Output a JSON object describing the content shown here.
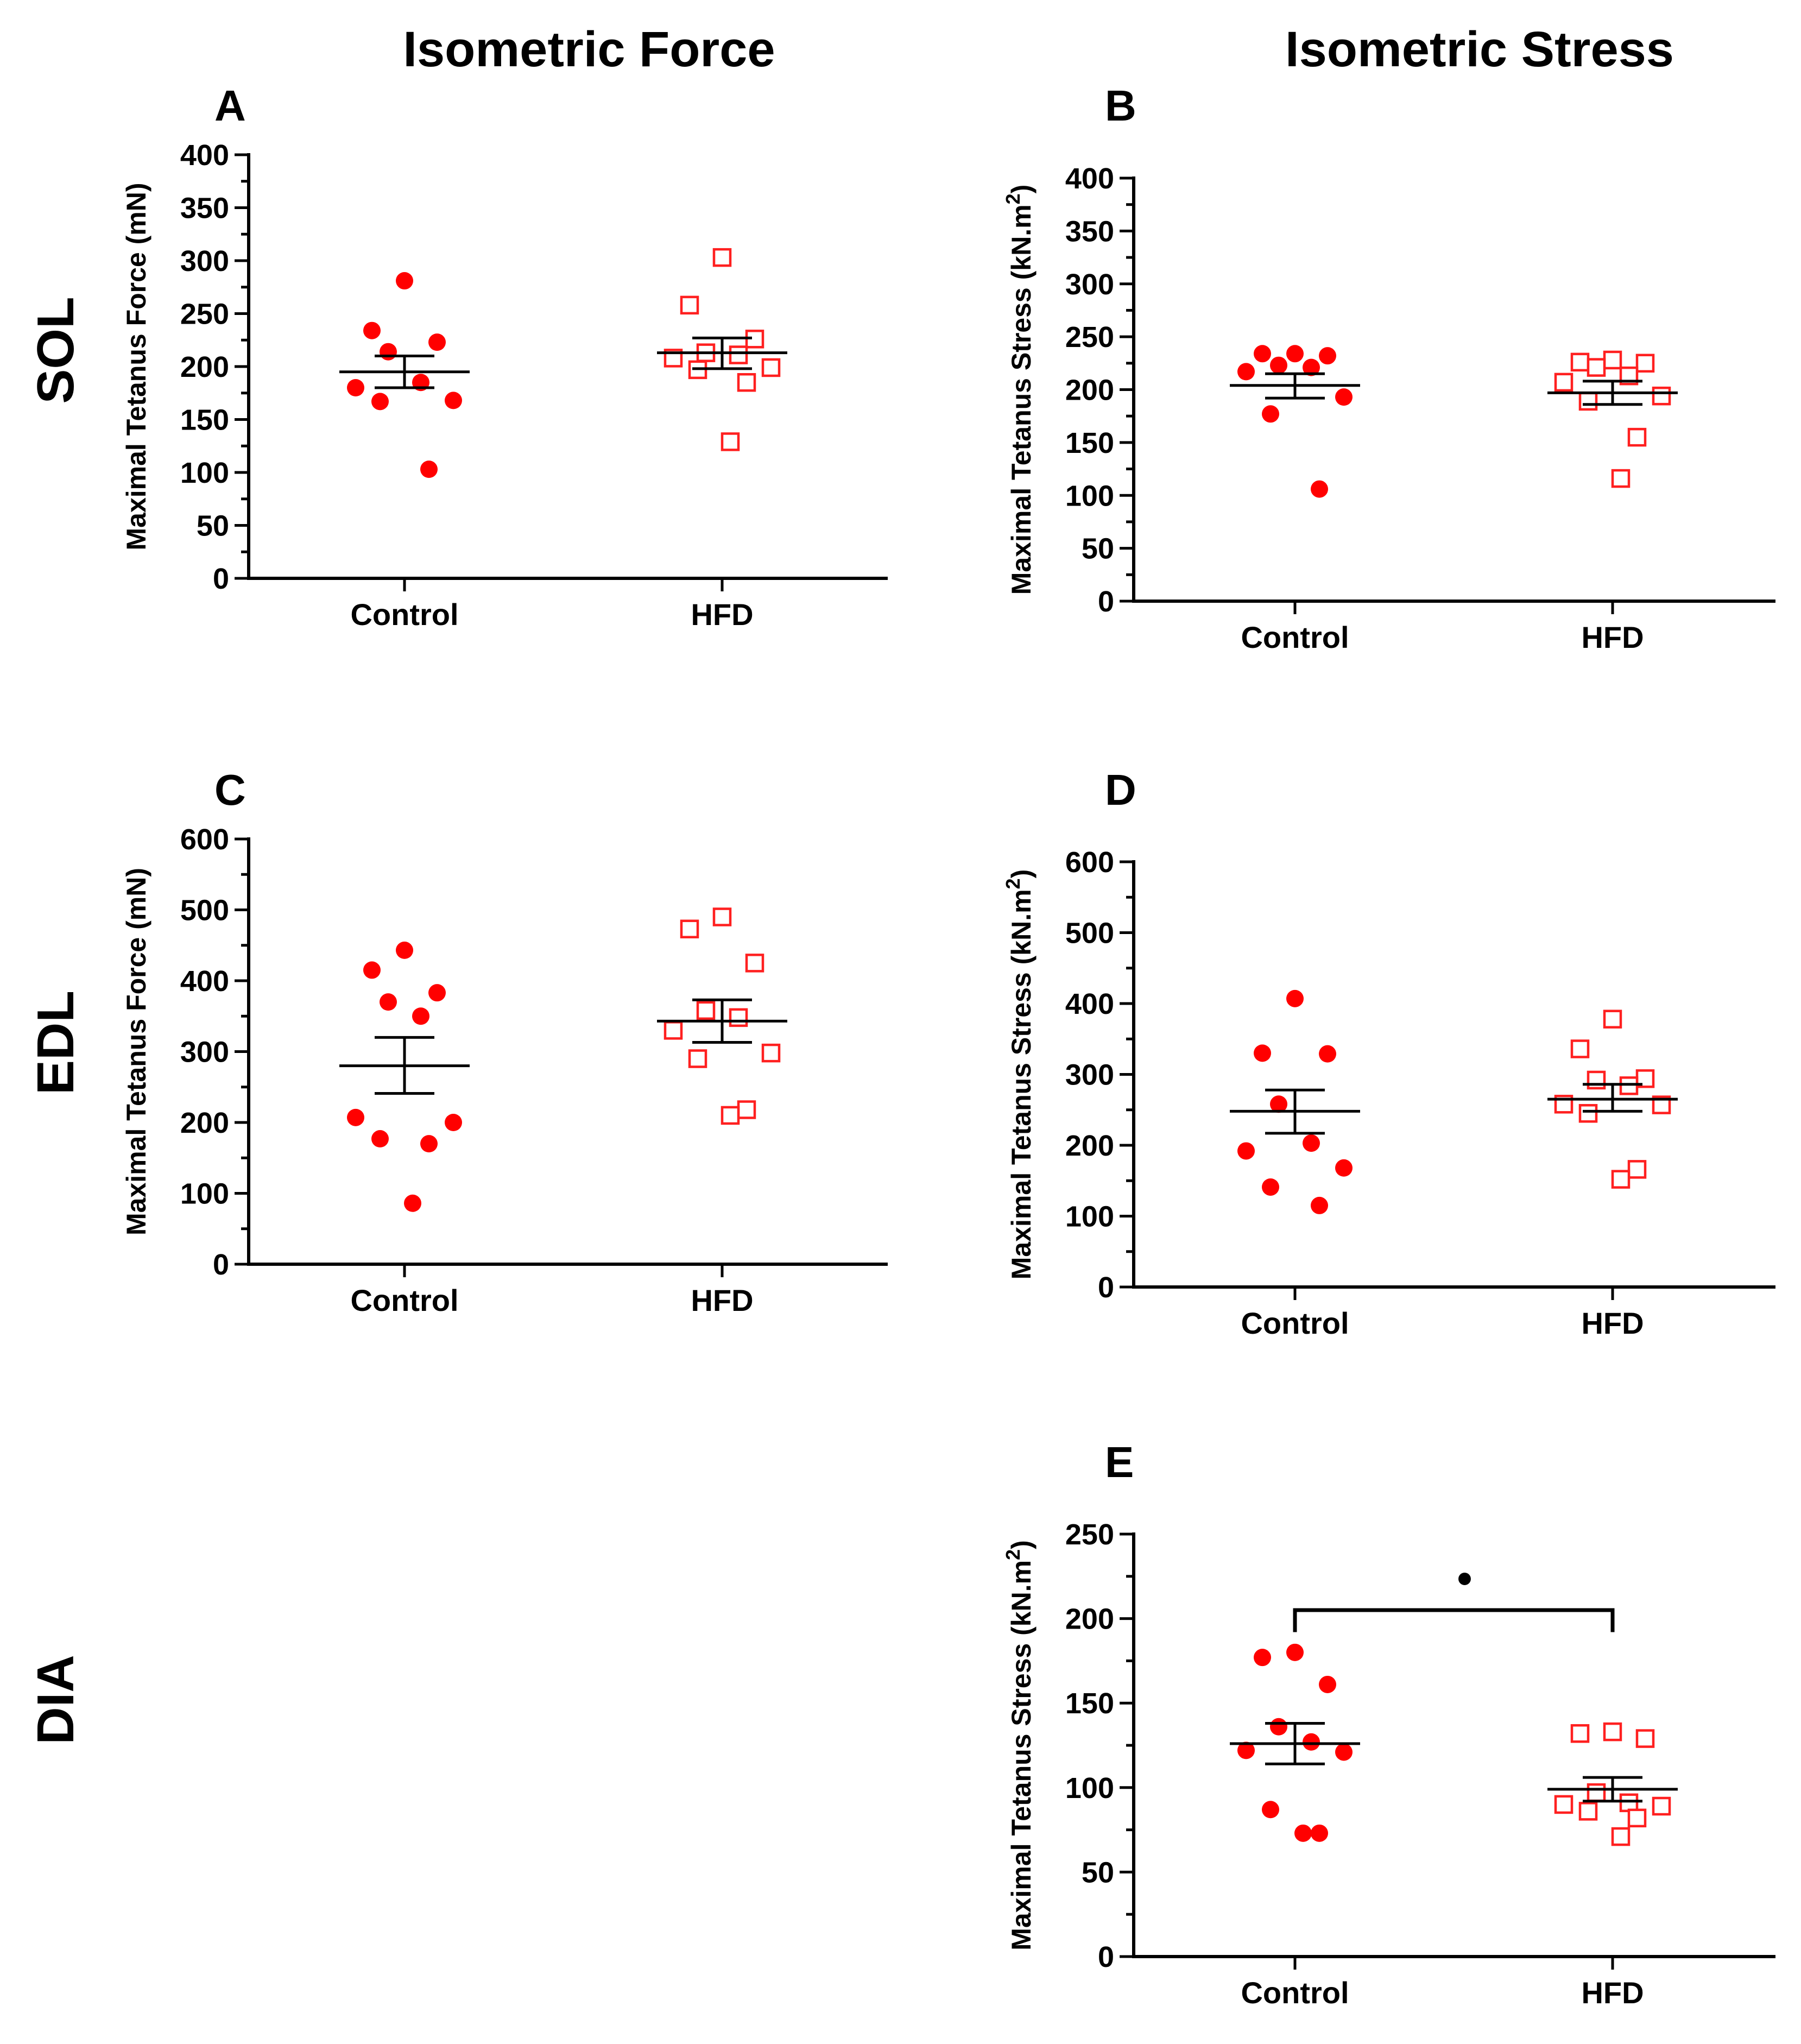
{
  "figure": {
    "column_titles": [
      "Isometric Force",
      "Isometric Stress"
    ],
    "row_titles": [
      "SOL",
      "EDL",
      "DIA"
    ],
    "colors": {
      "control": "#ff0000",
      "hfd": "#ff2020",
      "axis": "#000000"
    }
  },
  "chart_data": [
    {
      "id": "A",
      "label": "A",
      "type": "scatter",
      "ylabel": "Maximal Tetanus Force (mN)",
      "ylim": [
        0,
        400
      ],
      "yticks": [
        0,
        50,
        100,
        150,
        200,
        250,
        300,
        350,
        400
      ],
      "minor_step": 25,
      "categories": [
        "Control",
        "HFD"
      ],
      "series": [
        {
          "name": "Control",
          "marker": "filled-circle",
          "values": [
            281,
            234,
            223,
            214,
            185,
            180,
            168,
            167,
            103
          ],
          "mean": 195,
          "sem": [
            180,
            210
          ]
        },
        {
          "name": "HFD",
          "marker": "open-square",
          "values": [
            303,
            258,
            226,
            213,
            211,
            208,
            199,
            197,
            185,
            129
          ],
          "mean": 213,
          "sem": [
            198,
            227
          ]
        }
      ]
    },
    {
      "id": "B",
      "label": "B",
      "type": "scatter",
      "ylabel": "Maximal Tetanus Stress (kN.m",
      "ylabel_sup": "2",
      "ylabel_end": ")",
      "ylim": [
        0,
        400
      ],
      "yticks": [
        0,
        50,
        100,
        150,
        200,
        250,
        300,
        350,
        400
      ],
      "minor_step": 25,
      "categories": [
        "Control",
        "HFD"
      ],
      "series": [
        {
          "name": "Control",
          "marker": "filled-circle",
          "values": [
            234,
            234,
            232,
            223,
            221,
            217,
            193,
            177,
            106
          ],
          "mean": 204,
          "sem": [
            192,
            215
          ]
        },
        {
          "name": "HFD",
          "marker": "open-square",
          "values": [
            228,
            226,
            225,
            221,
            213,
            207,
            194,
            189,
            155,
            116
          ],
          "mean": 197,
          "sem": [
            186,
            208
          ]
        }
      ]
    },
    {
      "id": "C",
      "label": "C",
      "type": "scatter",
      "ylabel": "Maximal Tetanus Force (mN)",
      "ylim": [
        0,
        600
      ],
      "yticks": [
        0,
        100,
        200,
        300,
        400,
        500,
        600
      ],
      "minor_step": 50,
      "categories": [
        "Control",
        "HFD"
      ],
      "series": [
        {
          "name": "Control",
          "marker": "filled-circle",
          "values": [
            443,
            415,
            383,
            370,
            350,
            207,
            200,
            177,
            170,
            86
          ],
          "mean": 280,
          "sem": [
            241,
            320
          ]
        },
        {
          "name": "HFD",
          "marker": "open-square",
          "values": [
            490,
            473,
            425,
            358,
            348,
            330,
            298,
            290,
            218,
            210
          ],
          "mean": 343,
          "sem": [
            313,
            373
          ]
        }
      ]
    },
    {
      "id": "D",
      "label": "D",
      "type": "scatter",
      "ylabel": "Maximal Tetanus Stress (kN.m",
      "ylabel_sup": "2",
      "ylabel_end": ")",
      "ylim": [
        0,
        600
      ],
      "yticks": [
        0,
        100,
        200,
        300,
        400,
        500,
        600
      ],
      "minor_step": 50,
      "categories": [
        "Control",
        "HFD"
      ],
      "series": [
        {
          "name": "Control",
          "marker": "filled-circle",
          "values": [
            407,
            330,
            329,
            258,
            203,
            192,
            168,
            141,
            115
          ],
          "mean": 248,
          "sem": [
            217,
            278
          ]
        },
        {
          "name": "HFD",
          "marker": "open-square",
          "values": [
            378,
            336,
            294,
            292,
            284,
            258,
            257,
            245,
            166,
            152
          ],
          "mean": 265,
          "sem": [
            248,
            286
          ]
        }
      ]
    },
    {
      "id": "E",
      "label": "E",
      "type": "scatter",
      "ylabel": "Maximal Tetanus Stress (kN.m",
      "ylabel_sup": "2",
      "ylabel_end": ")",
      "ylim": [
        0,
        250
      ],
      "yticks": [
        0,
        50,
        100,
        150,
        200,
        250
      ],
      "minor_step": 25,
      "categories": [
        "Control",
        "HFD"
      ],
      "significance": {
        "marker": "•"
      },
      "series": [
        {
          "name": "Control",
          "marker": "filled-circle",
          "values": [
            180,
            177,
            161,
            136,
            127,
            122,
            121,
            87,
            73,
            73
          ],
          "mean": 126,
          "sem": [
            114,
            138
          ]
        },
        {
          "name": "HFD",
          "marker": "open-square",
          "values": [
            133,
            132,
            129,
            97,
            91,
            90,
            89,
            86,
            82,
            71
          ],
          "mean": 99,
          "sem": [
            92,
            106
          ]
        }
      ]
    }
  ]
}
